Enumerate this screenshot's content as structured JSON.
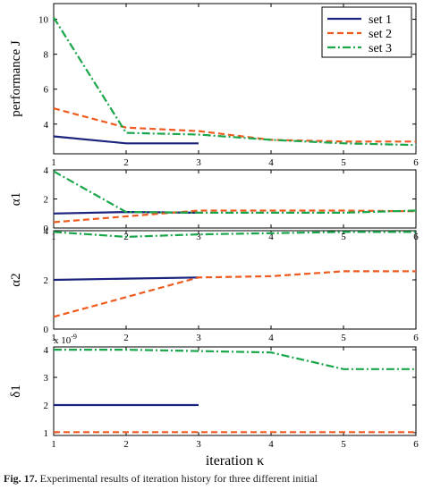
{
  "chart_data": [
    {
      "type": "line",
      "ylabel": "performance J",
      "x_ticks": [
        1,
        2,
        3,
        4,
        5,
        6
      ],
      "y_ticks": [
        4,
        6,
        8,
        10
      ],
      "ylim": [
        2.3,
        10.9
      ],
      "xlim": [
        1,
        6
      ],
      "legend": {
        "placement": "top-right",
        "entries": [
          "set 1",
          "set 2",
          "set 3"
        ]
      },
      "series": [
        {
          "name": "set 1",
          "x": [
            1,
            2,
            3
          ],
          "values": [
            3.3,
            2.9,
            2.9
          ]
        },
        {
          "name": "set 2",
          "x": [
            1,
            2,
            3,
            4,
            5,
            6
          ],
          "values": [
            4.9,
            3.8,
            3.6,
            3.1,
            3.0,
            3.0
          ]
        },
        {
          "name": "set 3",
          "x": [
            1,
            2,
            3,
            4,
            5,
            6
          ],
          "values": [
            10.1,
            3.5,
            3.4,
            3.1,
            2.9,
            2.8
          ]
        }
      ]
    },
    {
      "type": "line",
      "ylabel": "α1",
      "x_ticks": [
        1,
        2,
        3,
        4,
        5,
        6
      ],
      "y_ticks": [
        0,
        2,
        4
      ],
      "ylim": [
        0,
        4
      ],
      "xlim": [
        1,
        6
      ],
      "series": [
        {
          "name": "set 1",
          "x": [
            1,
            2,
            3
          ],
          "values": [
            1.0,
            1.1,
            1.05
          ]
        },
        {
          "name": "set 2",
          "x": [
            1,
            2,
            3,
            4,
            5,
            6
          ],
          "values": [
            0.4,
            0.8,
            1.2,
            1.2,
            1.2,
            1.15
          ]
        },
        {
          "name": "set 3",
          "x": [
            1,
            2,
            3,
            4,
            5,
            6
          ],
          "values": [
            3.9,
            1.1,
            1.05,
            1.05,
            1.05,
            1.2
          ]
        }
      ]
    },
    {
      "type": "line",
      "ylabel": "α2",
      "x_ticks": [
        1,
        2,
        3,
        4,
        5,
        6
      ],
      "y_ticks": [
        0,
        2,
        4
      ],
      "ylim": [
        0,
        4
      ],
      "xlim": [
        1,
        6
      ],
      "series": [
        {
          "name": "set 1",
          "x": [
            1,
            2,
            3
          ],
          "values": [
            2.0,
            2.05,
            2.1
          ]
        },
        {
          "name": "set 2",
          "x": [
            1,
            2,
            3,
            4,
            5,
            6
          ],
          "values": [
            0.5,
            1.3,
            2.1,
            2.15,
            2.35,
            2.35
          ]
        },
        {
          "name": "set 3",
          "x": [
            1,
            2,
            3,
            4,
            5,
            6
          ],
          "values": [
            3.95,
            3.75,
            3.85,
            3.9,
            3.95,
            3.95
          ]
        }
      ]
    },
    {
      "type": "line",
      "ylabel": "δ1",
      "y_multiplier": "x 10",
      "y_multiplier_exponent": "-9",
      "x_ticks": [
        1,
        2,
        3,
        4,
        5,
        6
      ],
      "y_ticks": [
        1,
        2,
        3,
        4
      ],
      "ylim": [
        0.9,
        4.1
      ],
      "xlim": [
        1,
        6
      ],
      "series": [
        {
          "name": "set 1",
          "x": [
            1,
            2,
            3
          ],
          "values": [
            2.0,
            2.0,
            2.0
          ]
        },
        {
          "name": "set 2",
          "x": [
            1,
            2,
            3,
            4,
            5,
            6
          ],
          "values": [
            1.02,
            1.02,
            1.02,
            1.02,
            1.02,
            1.02
          ]
        },
        {
          "name": "set 3",
          "x": [
            1,
            2,
            3,
            4,
            5,
            6
          ],
          "values": [
            4.0,
            4.0,
            3.95,
            3.9,
            3.3,
            3.3
          ]
        }
      ]
    }
  ],
  "xlabel": "iteration κ",
  "series_style": {
    "set 1": {
      "color": "#1a237e",
      "dash": "solid"
    },
    "set 2": {
      "color": "#ef5a1f",
      "dash": "dashed"
    },
    "set 3": {
      "color": "#1aa64a",
      "dash": "dashdot"
    }
  },
  "caption": {
    "label": "Fig. 17.",
    "text": "Experimental results of iteration history for three different initial"
  }
}
